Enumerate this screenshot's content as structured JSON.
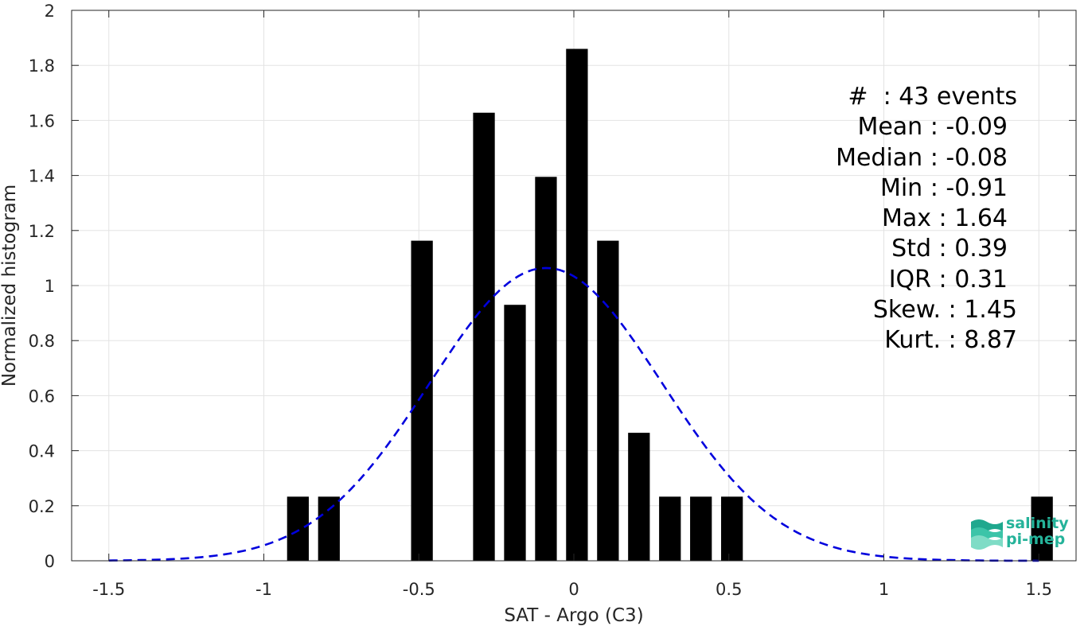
{
  "chart_data": {
    "type": "bar",
    "xlabel": "SAT - Argo (C3)",
    "ylabel": "Normalized histogram",
    "xlim": [
      -1.62,
      1.62
    ],
    "ylim": [
      0,
      2
    ],
    "xticks": [
      -1.5,
      -1,
      -0.5,
      0,
      0.5,
      1,
      1.5
    ],
    "xtick_labels": [
      "-1.5",
      "-1",
      "-0.5",
      "0",
      "0.5",
      "1",
      "1.5"
    ],
    "yticks": [
      0,
      0.2,
      0.4,
      0.6,
      0.8,
      1,
      1.2,
      1.4,
      1.6,
      1.8,
      2
    ],
    "ytick_labels": [
      "0",
      "0.2",
      "0.4",
      "0.6",
      "0.8",
      "1",
      "1.2",
      "1.4",
      "1.6",
      "1.8",
      "2"
    ],
    "grid": true,
    "bar_color": "#000000",
    "bar_width": 0.07,
    "bars": [
      {
        "x": -0.89,
        "y": 0.233
      },
      {
        "x": -0.79,
        "y": 0.233
      },
      {
        "x": -0.49,
        "y": 1.163
      },
      {
        "x": -0.29,
        "y": 1.628
      },
      {
        "x": -0.19,
        "y": 0.93
      },
      {
        "x": -0.09,
        "y": 1.395
      },
      {
        "x": 0.01,
        "y": 1.86
      },
      {
        "x": 0.11,
        "y": 1.163
      },
      {
        "x": 0.21,
        "y": 0.465
      },
      {
        "x": 0.31,
        "y": 0.233
      },
      {
        "x": 0.41,
        "y": 0.233
      },
      {
        "x": 0.51,
        "y": 0.233
      },
      {
        "x": 1.51,
        "y": 0.233
      }
    ],
    "fit_curve": {
      "color": "#0000dd",
      "style": "dashed",
      "type": "normal",
      "mean": -0.09,
      "std": 0.375,
      "x_range": [
        -1.5,
        1.5
      ]
    }
  },
  "stats": {
    "lines": [
      "#  : 43 events",
      "Mean : -0.09",
      "Median : -0.08",
      "Min : -0.91",
      "Max : 1.64",
      "Std : 0.39",
      "IQR : 0.31",
      "Skew. : 1.45",
      "Kurt. : 8.87"
    ],
    "pad_right": [
      "0",
      "0.4em",
      "0.4em",
      "0.4em",
      "0.4em",
      "0.4em",
      "0.4em",
      "0",
      "0"
    ]
  },
  "logo": {
    "line1": "salinity",
    "line2": "pi-mep",
    "color": "#25b39a"
  }
}
